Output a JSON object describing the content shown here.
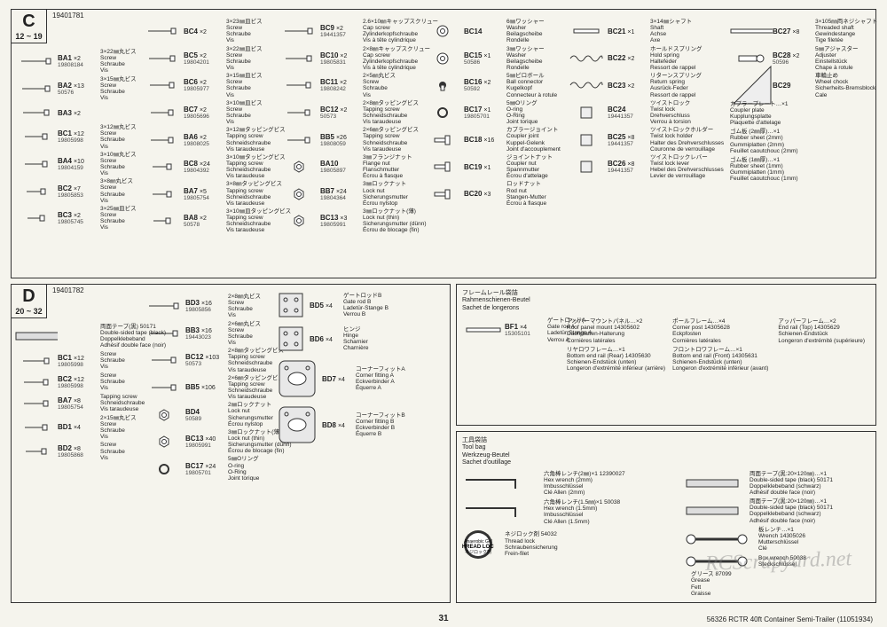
{
  "page_number": "31",
  "footer": "56326   RCTR 40ft Container Semi-Trailer   (11051934)",
  "watermark": "RCScrapyard.net",
  "sectionC": {
    "letter": "C",
    "range": "12 ~ 19",
    "code": "19401781",
    "col1": [
      {
        "code": "BA1",
        "qty": "×2",
        "num": "19808184",
        "jp": "3×22㎜丸ビス",
        "d1": "Screw",
        "d2": "Schraube",
        "d3": "Vis"
      },
      {
        "code": "BA2",
        "qty": "×13",
        "num": "50576",
        "jp": "3×15㎜丸ビス",
        "d1": "Screw",
        "d2": "Schraube",
        "d3": "Vis"
      },
      {
        "code": "BA3",
        "qty": "×2",
        "num": "",
        "jp": "",
        "d1": "",
        "d2": "",
        "d3": ""
      },
      {
        "code": "BC1",
        "qty": "×12",
        "num": "19805998",
        "jp": "3×12㎜丸ビス",
        "d1": "Screw",
        "d2": "Schraube",
        "d3": "Vis"
      },
      {
        "code": "BA4",
        "qty": "×10",
        "num": "19804159",
        "jp": "3×10㎜丸ビス",
        "d1": "Screw",
        "d2": "Schraube",
        "d3": "Vis"
      },
      {
        "code": "BC2",
        "qty": "×7",
        "num": "19805853",
        "jp": "3×8㎜丸ビス",
        "d1": "Screw",
        "d2": "Schraube",
        "d3": "Vis"
      },
      {
        "code": "BC3",
        "qty": "×2",
        "num": "19805745",
        "jp": "3×25㎜皿ビス",
        "d1": "Screw",
        "d2": "Schraube",
        "d3": "Vis"
      }
    ],
    "col2": [
      {
        "code": "BC4",
        "qty": "×2",
        "num": "",
        "jp": "3×23㎜皿ビス",
        "d1": "Screw",
        "d2": "Schraube",
        "d3": "Vis"
      },
      {
        "code": "BC5",
        "qty": "×2",
        "num": "19804201",
        "jp": "3×22㎜皿ビス",
        "d1": "Screw",
        "d2": "Schraube",
        "d3": "Vis"
      },
      {
        "code": "BC6",
        "qty": "×2",
        "num": "19805977",
        "jp": "3×15㎜皿ビス",
        "d1": "Screw",
        "d2": "Schraube",
        "d3": "Vis"
      },
      {
        "code": "BC7",
        "qty": "×2",
        "num": "19805696",
        "jp": "3×10㎜皿ビス",
        "d1": "Screw",
        "d2": "Schraube",
        "d3": "Vis"
      },
      {
        "code": "BA6",
        "qty": "×2",
        "num": "19808025",
        "jp": "3×12㎜タッピングビス",
        "d1": "Tapping screw",
        "d2": "Schneidschraube",
        "d3": "Vis taraudeuse"
      },
      {
        "code": "BC8",
        "qty": "×24",
        "num": "19804392",
        "jp": "3×10㎜タッピングビス",
        "d1": "Tapping screw",
        "d2": "Schneidschraube",
        "d3": "Vis taraudeuse"
      },
      {
        "code": "BA7",
        "qty": "×5",
        "num": "19805754",
        "jp": "3×8㎜タッピングビス",
        "d1": "Tapping screw",
        "d2": "Schneidschraube",
        "d3": "Vis taraudeuse"
      },
      {
        "code": "BA8",
        "qty": "×2",
        "num": "50578",
        "jp": "3×10㎜皿タッピングビス",
        "d1": "Tapping screw",
        "d2": "Schneidschraube",
        "d3": "Vis taraudeuse"
      }
    ],
    "col3": [
      {
        "code": "BC9",
        "qty": "×2",
        "num": "19441357",
        "jp": "2.6×10㎜キャップスクリュー",
        "d1": "Cap screw",
        "d2": "Zylinderkopfschraube",
        "d3": "Vis à tête cylindrique"
      },
      {
        "code": "BC10",
        "qty": "×2",
        "num": "19805831",
        "jp": "2×8㎜キャップスクリュー",
        "d1": "Cap screw",
        "d2": "Zylinderkopfschraube",
        "d3": "Vis à tête cylindrique"
      },
      {
        "code": "BC11",
        "qty": "×2",
        "num": "19808242",
        "jp": "2×5㎜丸ビス",
        "d1": "Screw",
        "d2": "Schraube",
        "d3": "Vis"
      },
      {
        "code": "BC12",
        "qty": "×2",
        "num": "50573",
        "jp": "2×8㎜タッピングビス",
        "d1": "Tapping screw",
        "d2": "Schneidschraube",
        "d3": "Vis taraudeuse"
      },
      {
        "code": "BB5",
        "qty": "×26",
        "num": "19808059",
        "jp": "2×6㎜タッピングビス",
        "d1": "Tapping screw",
        "d2": "Schneidschraube",
        "d3": "Vis taraudeuse"
      },
      {
        "code": "BA10",
        "qty": "",
        "num": "19805897",
        "jp": "3㎜フランジナット",
        "d1": "Flange nut",
        "d2": "Flanschmutter",
        "d3": "Écrou à flasque"
      },
      {
        "code": "BB7",
        "qty": "×24",
        "num": "19804364",
        "jp": "3㎜ロックナット",
        "d1": "Lock nut",
        "d2": "Sicherungsmutter",
        "d3": "Écrou nylstop"
      },
      {
        "code": "BC13",
        "qty": "×3",
        "num": "19805991",
        "jp": "3㎜ロックナット(薄)",
        "d1": "Lock nut (thin)",
        "d2": "Sicherungsmutter (dünn)",
        "d3": "Écrou de blocage (fin)"
      }
    ],
    "col4": [
      {
        "code": "BC14",
        "qty": "",
        "num": "",
        "jp": "6㎜ワッシャー",
        "d1": "Washer",
        "d2": "Beilagscheibe",
        "d3": "Rondelle"
      },
      {
        "code": "BC15",
        "qty": "×1",
        "num": "50586",
        "jp": "3㎜ワッシャー",
        "d1": "Washer",
        "d2": "Beilagscheibe",
        "d3": "Rondelle"
      },
      {
        "code": "BC16",
        "qty": "×2",
        "num": "50592",
        "jp": "5㎜ピロボール",
        "d1": "Ball connector",
        "d2": "Kugelkopf",
        "d3": "Connecteur à rotule"
      },
      {
        "code": "BC17",
        "qty": "×1",
        "num": "19805701",
        "jp": "5㎜Oリング",
        "d1": "O-ring",
        "d2": "O-Ring",
        "d3": "Joint torique"
      },
      {
        "code": "BC18",
        "qty": "×16",
        "num": "",
        "jp": "カプラージョイント",
        "d1": "Coupler joint",
        "d2": "Kuppel-Gelenk",
        "d3": "Joint d'accouplement"
      },
      {
        "code": "BC19",
        "qty": "×1",
        "num": "",
        "jp": "ジョイントナット",
        "d1": "Coupler nut",
        "d2": "Spannmutter",
        "d3": "Écrou d'attelage"
      },
      {
        "code": "BC20",
        "qty": "×3",
        "num": "",
        "jp": "ロッドナット",
        "d1": "Rod nut",
        "d2": "Stangen-Mutter",
        "d3": "Écrou à flasque"
      }
    ],
    "col5": [
      {
        "code": "BC21",
        "qty": "×1",
        "num": "",
        "jp": "3×14㎜シャフト",
        "d1": "Shaft",
        "d2": "Achse",
        "d3": "Axe"
      },
      {
        "code": "BC22",
        "qty": "×2",
        "num": "",
        "jp": "ホールドスプリング",
        "d1": "Hold spring",
        "d2": "Haltefeder",
        "d3": "Ressort de rappel"
      },
      {
        "code": "BC23",
        "qty": "×2",
        "num": "",
        "jp": "リターンスプリング",
        "d1": "Return spring",
        "d2": "Ausrück-Feder",
        "d3": "Ressort de rappel"
      },
      {
        "code": "BC24",
        "qty": "",
        "num": "19441357",
        "jp": "ツイストロック",
        "d1": "Twist lock",
        "d2": "Drehverschluss",
        "d3": "Verrou à torsion"
      },
      {
        "code": "BC25",
        "qty": "×8",
        "num": "19441357",
        "jp": "ツイストロックホルダー",
        "d1": "Twist lock holder",
        "d2": "Halter des Drehverschlusses",
        "d3": "Couronne de verrouillage"
      },
      {
        "code": "BC26",
        "qty": "×8",
        "num": "19441357",
        "jp": "ツイストロックレバー",
        "d1": "Twist lock lever",
        "d2": "Hebel des Drehverschlusses",
        "d3": "Levier de verrouillage"
      }
    ],
    "col6": [
      {
        "code": "BC27",
        "qty": "×8",
        "num": "",
        "jp": "3×105㎜両ネジシャフト",
        "d1": "Threaded shaft",
        "d2": "Gewindestange",
        "d3": "Tige filetée"
      },
      {
        "code": "BC28",
        "qty": "×2",
        "num": "50596",
        "jp": "5㎜アジャスター",
        "d1": "Adjuster",
        "d2": "Einstellstück",
        "d3": "Chape à rotule"
      },
      {
        "code": "BC29",
        "qty": "",
        "num": "",
        "jp": "車輪止め",
        "d1": "Wheel chock",
        "d2": "Sicherheits-Bremsblock",
        "d3": "Cale"
      },
      {
        "items": [
          {
            "jp": "カプラープレート…×1",
            "d1": "Coupler plate",
            "d2": "Kupplungsplatte",
            "d3": "Plaquette d'attelage"
          },
          {
            "jp": "ゴム板 (2㎜厚)…×1",
            "d1": "Rubber sheet (2mm)",
            "d2": "Gummiplatten (2mm)",
            "d3": "Feuillet caoutchouc (2mm)"
          },
          {
            "jp": "ゴム板 (1㎜厚)…×1",
            "d1": "Rubber sheet (1mm)",
            "d2": "Gummiplatten (1mm)",
            "d3": "Feuillet caoutchouc (1mm)"
          }
        ]
      }
    ]
  },
  "sectionD": {
    "letter": "D",
    "range": "20 ~ 32",
    "code": "19401782",
    "col1": [
      {
        "code": "",
        "qty": "",
        "jp": "両面テープ(黒) 50171",
        "d1": "Double-sided tape (black)",
        "d2": "Doppelklebeband",
        "d3": "Adhésif double face (noir)"
      },
      {
        "code": "BC1",
        "qty": "×12",
        "num": "19805998",
        "jp": "",
        "d1": "Screw",
        "d2": "Schraube",
        "d3": "Vis"
      },
      {
        "code": "BC2",
        "qty": "×12",
        "num": "19805998",
        "jp": "",
        "d1": "Screw",
        "d2": "Schraube",
        "d3": "Vis"
      },
      {
        "code": "BA7",
        "qty": "×8",
        "num": "19805754",
        "jp": "",
        "d1": "Tapping screw",
        "d2": "Schneidschraube",
        "d3": "Vis taraudeuse"
      },
      {
        "code": "BD1",
        "qty": "×4",
        "num": "",
        "jp": "2×15㎜丸ビス",
        "d1": "Screw",
        "d2": "Schraube",
        "d3": "Vis"
      },
      {
        "code": "BD2",
        "qty": "×8",
        "num": "19805868",
        "jp": "",
        "d1": "Screw",
        "d2": "Schraube",
        "d3": "Vis"
      }
    ],
    "col2": [
      {
        "code": "BD3",
        "qty": "×16",
        "num": "19805856",
        "jp": "2×8㎜丸ビス",
        "d1": "Screw",
        "d2": "Schraube",
        "d3": "Vis"
      },
      {
        "code": "BB3",
        "qty": "×16",
        "num": "19443023",
        "jp": "2×6㎜丸ビス",
        "d1": "Screw",
        "d2": "Schraube",
        "d3": "Vis"
      },
      {
        "code": "BC12",
        "qty": "×103",
        "num": "50573",
        "jp": "2×8㎜タッピングビス",
        "d1": "Tapping screw",
        "d2": "Schneidschraube",
        "d3": "Vis taraudeuse"
      },
      {
        "code": "BB5",
        "qty": "×106",
        "num": "",
        "jp": "2×6㎜タッピングビス",
        "d1": "Tapping screw",
        "d2": "Schneidschraube",
        "d3": "Vis taraudeuse"
      },
      {
        "code": "BD4",
        "qty": "",
        "num": "50589",
        "jp": "2㎜ロックナット",
        "d1": "Lock nut",
        "d2": "Sicherungsmutter",
        "d3": "Écrou nylstop"
      },
      {
        "code": "BC13",
        "qty": "×40",
        "num": "19805991",
        "jp": "3㎜ロックナット(薄)",
        "d1": "Lock nut (thin)",
        "d2": "Sicherungsmutter (dünn)",
        "d3": "Écrou de blocage (fin)"
      },
      {
        "code": "BC17",
        "qty": "×24",
        "num": "19805701",
        "jp": "5㎜Oリング",
        "d1": "O-ring",
        "d2": "O-Ring",
        "d3": "Joint torique"
      }
    ],
    "col3": [
      {
        "code": "BD5",
        "qty": "×4",
        "num": "",
        "jp": "ゲートロッドB",
        "d1": "Gate rod B",
        "d2": "Ladetür-Stange B",
        "d3": "Verrou B"
      },
      {
        "code": "BD6",
        "qty": "×4",
        "num": "",
        "jp": "ヒンジ",
        "d1": "Hinge",
        "d2": "Scharnier",
        "d3": "Charnière"
      },
      {
        "code": "BD7",
        "qty": "×4",
        "num": "",
        "jp": "コーナーフィットA",
        "d1": "Corner fitting A",
        "d2": "Eckverbinder A",
        "d3": "Équerre A"
      },
      {
        "code": "BD8",
        "qty": "×4",
        "num": "",
        "jp": "コーナーフィットB",
        "d1": "Corner fitting B",
        "d2": "Eckverbinder B",
        "d3": "Équerre B"
      }
    ]
  },
  "frameRailBag": {
    "title_jp": "フレームレール袋詰",
    "title_de": "Rahmenschienen-Beutel",
    "title_fr": "Sachet de longerons",
    "items1": [
      {
        "code": "BF1",
        "qty": "×4",
        "num": "15305101",
        "jp": "ゲートロッドA",
        "d1": "Gate rod A",
        "d2": "Ladetür-Stange A",
        "d3": "Verrou A"
      }
    ],
    "items2": [
      {
        "jp": "アッパーマウントパネル…×2",
        "d1": "Roof panel mount 14305602",
        "d2": "Dachplatten-Halterung",
        "d3": "Cornières latérales"
      },
      {
        "jp": "リヤロワフレーム…×1",
        "d1": "Bottom end rail (Rear) 14305630",
        "d2": "Schienen-Endstück (unten)",
        "d3": "Longeron d'extrémité inférieur (arrière)"
      }
    ],
    "items3": [
      {
        "jp": "ポールフレーム…×4",
        "d1": "Corner post 14305628",
        "d2": "Eckpfosten",
        "d3": "Cornières latérales"
      },
      {
        "jp": "フロントロワフレーム…×1",
        "d1": "Bottom end rail (Front) 14305631",
        "d2": "Schienen-Endstück (unten)",
        "d3": "Longeron d'extrémité inférieur (avant)"
      }
    ],
    "items4": [
      {
        "jp": "アッパーフレーム…×2",
        "d1": "End rail (Top) 14305629",
        "d2": "Schienen-Endstück",
        "d3": "Longeron d'extrémité (supérieure)"
      }
    ]
  },
  "toolBag": {
    "title_jp": "工具袋詰",
    "title_en": "Tool bag",
    "title_de": "Werkzeug-Beutel",
    "title_fr": "Sachet d'outillage",
    "items1": [
      {
        "jp": "六角棒レンチ(2㎜)×1 12390027",
        "d1": "Hex wrench (2mm)",
        "d2": "Imbusschlüssel",
        "d3": "Clé Allen (2mm)"
      },
      {
        "jp": "六角棒レンチ(1.5㎜)×1 50038",
        "d1": "Hex wrench (1.5mm)",
        "d2": "Imbusschlüssel",
        "d3": "Clé Allen (1.5mm)"
      },
      {
        "jp": "ネジロック剤 54032",
        "d1": "Thread lock",
        "d2": "Schraubensicherung",
        "d3": "Frein-filet"
      }
    ],
    "items2": [
      {
        "jp": "両面テープ(黒:20×120㎜)…×1",
        "d1": "Double-sided tape (black) 50171",
        "d2": "Doppelklebeband (schwarz)",
        "d3": "Adhésif double face (noir)"
      },
      {
        "jp": "両面テープ(黒:20×120㎜)…×1",
        "d1": "Double-sided tape (black) 50171",
        "d2": "Doppelklebeband (schwarz)",
        "d3": "Adhésif double face (noir)"
      },
      {
        "jp": "板レンチ…×1",
        "d1": "Wrench 14305026",
        "d2": "Mutterschlüssel",
        "d3": "Clé"
      },
      {
        "jp": "",
        "d1": "Box wrench 50038",
        "d2": "Steckschlüssel",
        "d3": ""
      },
      {
        "jp": "グリース 87099",
        "d1": "Grease",
        "d2": "Fett",
        "d3": "Graisse"
      }
    ]
  }
}
